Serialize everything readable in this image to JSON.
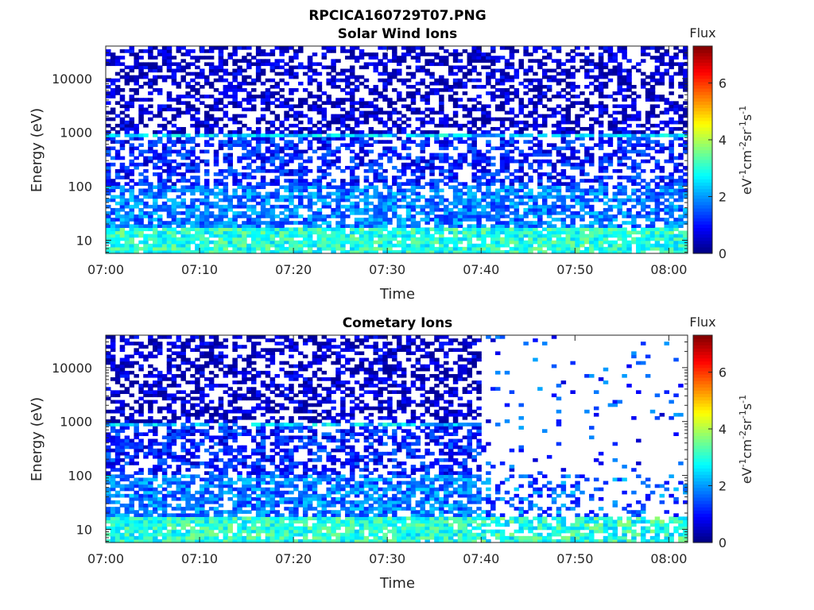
{
  "figure": {
    "title": "RPCICA160729T07.PNG"
  },
  "chart_data": [
    {
      "type": "heatmap",
      "title": "Solar Wind Ions",
      "xlabel": "Time",
      "ylabel": "Energy (eV)",
      "x_range": [
        "07:00",
        "08:02"
      ],
      "x_ticks": [
        "07:00",
        "07:10",
        "07:20",
        "07:30",
        "07:40",
        "07:50",
        "08:00"
      ],
      "y_scale": "log",
      "y_range": [
        5.7,
        40000
      ],
      "y_ticks": [
        "10",
        "100",
        "1000",
        "10000"
      ],
      "colorbar": {
        "title": "Flux",
        "label": "eV-1cm-2sr-1s-1",
        "range": [
          0,
          7.3
        ],
        "ticks": [
          "0",
          "2",
          "4",
          "6"
        ],
        "colormap": "jet"
      },
      "end_time": "08:02"
    },
    {
      "type": "heatmap",
      "title": "Cometary Ions",
      "xlabel": "Time",
      "ylabel": "Energy (eV)",
      "x_range": [
        "07:00",
        "08:02"
      ],
      "x_ticks": [
        "07:00",
        "07:10",
        "07:20",
        "07:30",
        "07:40",
        "07:50",
        "08:00"
      ],
      "y_scale": "log",
      "y_range": [
        5.7,
        40000
      ],
      "y_ticks": [
        "10",
        "100",
        "1000",
        "10000"
      ],
      "colorbar": {
        "title": "Flux",
        "label": "eV-1cm-2sr-1s-1",
        "range": [
          0,
          7.3
        ],
        "ticks": [
          "0",
          "2",
          "4",
          "6"
        ],
        "colormap": "jet"
      },
      "dense_until": "07:40",
      "end_time": "08:02"
    }
  ]
}
